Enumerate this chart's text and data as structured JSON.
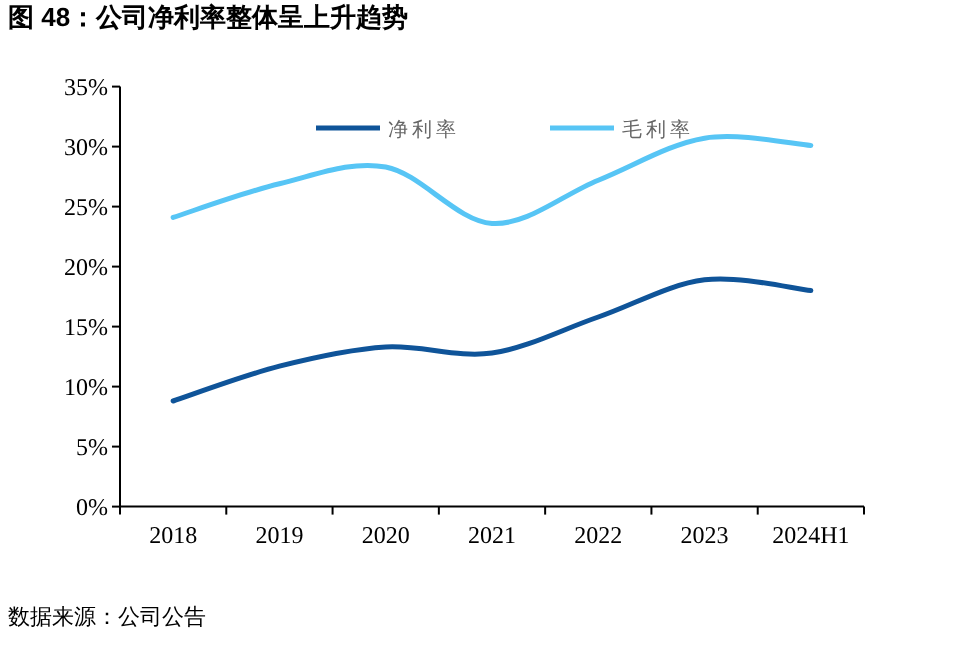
{
  "chart_data": {
    "type": "line",
    "title": "图 48：公司净利率整体呈上升趋势",
    "categories": [
      "2018",
      "2019",
      "2020",
      "2021",
      "2022",
      "2023",
      "2024H1"
    ],
    "series": [
      {
        "name": "净利率",
        "color": "#0f5499",
        "values": [
          8.8,
          11.7,
          13.3,
          12.8,
          15.8,
          18.9,
          18.0
        ]
      },
      {
        "name": "毛利率",
        "color": "#57c5f5",
        "values": [
          24.1,
          26.9,
          28.3,
          23.6,
          27.2,
          30.7,
          30.1
        ]
      }
    ],
    "ylim": [
      0,
      35
    ],
    "yticks": [
      {
        "value": 0,
        "label": "0%"
      },
      {
        "value": 5,
        "label": "5%"
      },
      {
        "value": 10,
        "label": "10%"
      },
      {
        "value": 15,
        "label": "15%"
      },
      {
        "value": 20,
        "label": "20%"
      },
      {
        "value": 25,
        "label": "25%"
      },
      {
        "value": 30,
        "label": "30%"
      },
      {
        "value": 35,
        "label": "35%"
      }
    ],
    "grid": false,
    "legend": "top",
    "marker": "none",
    "line_style": "solid",
    "annotations": [
      "数据来源：公司公告"
    ]
  }
}
